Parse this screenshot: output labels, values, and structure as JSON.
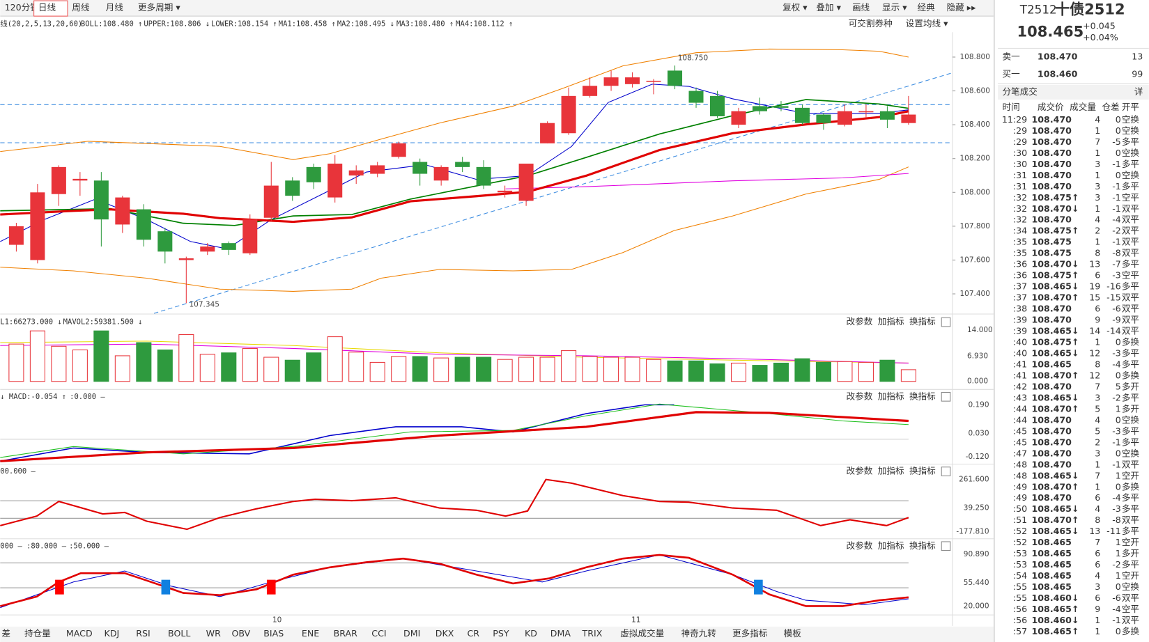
{
  "toolbar": {
    "periods": [
      "120分钟",
      "日线",
      "周线",
      "月线",
      "更多周期 ▾"
    ],
    "tools": [
      "复权 ▾",
      "叠加 ▾",
      "画线",
      "显示 ▾",
      "经典",
      "隐藏 ▸▸"
    ]
  },
  "main": {
    "legend": [
      "线(20,2,5,13,20,60)",
      "BOLL:108.480 ↑",
      "UPPER:108.806 ↓",
      "LOWER:108.154 ↑",
      "MA1:108.458 ↑",
      "MA2:108.495 ↓",
      "MA3:108.480 ↑",
      "MA4:108.112 ↑"
    ],
    "legend_colors": [
      "#333333",
      "#e00000",
      "#f08000",
      "#f08000",
      "#0000cc",
      "#008000",
      "#e00000",
      "#e000e0"
    ],
    "links": [
      "可交割券种",
      "设置均线 ▾"
    ],
    "ylim": [
      107.285,
      108.947
    ],
    "yticks": [
      {
        "value": 108.8,
        "label": "108.800"
      },
      {
        "value": 108.6,
        "label": "108.600"
      },
      {
        "value": 108.4,
        "label": "108.400"
      },
      {
        "value": 108.2,
        "label": "108.200"
      },
      {
        "value": 108.0,
        "label": "108.000"
      },
      {
        "value": 107.8,
        "label": "107.800"
      },
      {
        "value": 107.6,
        "label": "107.600"
      },
      {
        "value": 107.4,
        "label": "107.400"
      }
    ],
    "high_label": "108.750",
    "low_label": "107.345",
    "candles": {
      "open": [
        107.69,
        107.6,
        107.99,
        108.07,
        108.07,
        107.81,
        107.9,
        107.77,
        107.6,
        107.65,
        107.7,
        107.64,
        107.85,
        108.07,
        108.15,
        107.97,
        108.1,
        108.11,
        108.21,
        108.18,
        108.07,
        108.18,
        108.15,
        108.0,
        107.95,
        108.29,
        108.35,
        108.57,
        108.63,
        108.64,
        108.66,
        108.72,
        108.6,
        108.57,
        108.4,
        108.51,
        108.51,
        108.5,
        108.46,
        108.4,
        108.48,
        108.48,
        108.41
      ],
      "close": [
        107.8,
        108.0,
        108.15,
        108.08,
        107.84,
        107.97,
        107.72,
        107.65,
        107.61,
        107.68,
        107.66,
        107.84,
        108.04,
        107.98,
        108.06,
        108.17,
        108.13,
        108.16,
        108.29,
        108.11,
        108.15,
        108.15,
        108.04,
        108.01,
        108.17,
        108.41,
        108.57,
        108.63,
        108.68,
        108.68,
        108.66,
        108.63,
        108.53,
        108.45,
        108.48,
        108.48,
        108.5,
        108.41,
        108.41,
        108.48,
        108.48,
        108.43,
        108.46
      ],
      "high": [
        107.82,
        108.05,
        108.16,
        108.12,
        108.12,
        107.98,
        107.93,
        107.79,
        107.62,
        107.7,
        107.71,
        107.87,
        108.18,
        108.09,
        108.17,
        108.22,
        108.16,
        108.18,
        108.3,
        108.2,
        108.16,
        108.21,
        108.19,
        108.04,
        108.17,
        108.42,
        108.62,
        108.68,
        108.72,
        108.71,
        108.67,
        108.75,
        108.62,
        108.6,
        108.5,
        108.56,
        108.54,
        108.52,
        108.47,
        108.52,
        108.52,
        108.51,
        108.57
      ],
      "low": [
        107.65,
        107.58,
        107.92,
        107.98,
        107.68,
        107.76,
        107.68,
        107.58,
        107.345,
        107.63,
        107.63,
        107.63,
        107.83,
        107.95,
        108.02,
        107.94,
        108.05,
        108.09,
        108.2,
        108.04,
        108.04,
        108.12,
        108.02,
        107.97,
        107.92,
        108.29,
        108.34,
        108.56,
        108.6,
        108.62,
        108.58,
        108.61,
        108.5,
        108.44,
        108.38,
        108.46,
        108.48,
        108.4,
        108.37,
        108.39,
        108.44,
        108.38,
        108.4
      ]
    },
    "x_labels": [
      "10",
      "11"
    ]
  },
  "volume": {
    "legend": [
      "L1:66273.000 ↓",
      "MAVOL2:59381.500 ↓"
    ],
    "ylim": [
      0,
      14
    ],
    "yticks": [
      {
        "value": 14,
        "label": "14.000"
      },
      {
        "value": 6.93,
        "label": "6.930"
      },
      {
        "value": 0,
        "label": "0.000"
      }
    ],
    "values": [
      10.2,
      13.8,
      9.6,
      8.6,
      13.8,
      7.0,
      10.6,
      8.6,
      12.8,
      7.4,
      7.8,
      9.0,
      6.6,
      5.8,
      7.8,
      12.2,
      8.0,
      5.2,
      6.8,
      6.8,
      6.4,
      6.6,
      6.6,
      6.0,
      6.6,
      6.6,
      8.4,
      6.8,
      6.6,
      6.6,
      6.0,
      5.6,
      5.6,
      4.8,
      5.0,
      4.4,
      5.0,
      6.2,
      5.2,
      5.4,
      5.2,
      5.8,
      3.2
    ]
  },
  "macd": {
    "legend": [
      "↓ MACD:-0.054 ↑",
      ":0.000 –"
    ],
    "ticks": [
      "0.190",
      "0.030",
      "-0.120"
    ]
  },
  "cci": {
    "legend": [
      "00.000 –"
    ],
    "ticks": [
      "261.600",
      "39.250",
      "-177.810"
    ]
  },
  "kdj": {
    "legend": [
      "000 –",
      ":80.000 –",
      ":50.000 –"
    ],
    "ticks": [
      "90.890",
      "55.440",
      "20.000"
    ]
  },
  "panel_buttons": [
    "改参数",
    "加指标",
    "换指标"
  ],
  "tabs": [
    "差",
    "持仓量",
    "MACD",
    "KDJ",
    "RSI",
    "BOLL",
    "WR",
    "OBV",
    "BIAS",
    "ENE",
    "BRAR",
    "CCI",
    "DMI",
    "DKX",
    "CR",
    "PSY",
    "KD",
    "DMA",
    "TRIX",
    "虚拟成交量",
    "神奇九转",
    "更多指标",
    "模板"
  ],
  "quote": {
    "code": "T2512",
    "name": "十债2512",
    "price": "108.465",
    "change": "+0.045",
    "pct": "+0.04%",
    "book": [
      [
        "卖一",
        "108.470",
        "13"
      ],
      [
        "买一",
        "108.460",
        "99"
      ]
    ],
    "trades_title": "分笔成交",
    "detail": "详",
    "headers": [
      "时间",
      "成交价",
      "成交量",
      "仓差",
      "开平"
    ],
    "trades": [
      [
        "11:29",
        "108.470",
        "4",
        "0",
        "空换"
      ],
      [
        ":29",
        "108.470",
        "1",
        "0",
        "空换"
      ],
      [
        ":29",
        "108.470",
        "7",
        "-5",
        "多平"
      ],
      [
        ":30",
        "108.470",
        "1",
        "0",
        "空换"
      ],
      [
        ":30",
        "108.470",
        "3",
        "-1",
        "多平"
      ],
      [
        ":31",
        "108.470",
        "1",
        "0",
        "空换"
      ],
      [
        ":31",
        "108.470",
        "3",
        "-1",
        "多平"
      ],
      [
        ":32",
        "108.475↑",
        "3",
        "-1",
        "空平"
      ],
      [
        ":32",
        "108.470↓",
        "1",
        "-1",
        "双平"
      ],
      [
        ":32",
        "108.470",
        "4",
        "-4",
        "双平"
      ],
      [
        ":34",
        "108.475↑",
        "2",
        "-2",
        "双平"
      ],
      [
        ":35",
        "108.475",
        "1",
        "-1",
        "双平"
      ],
      [
        ":35",
        "108.475",
        "8",
        "-8",
        "双平"
      ],
      [
        ":36",
        "108.470↓",
        "13",
        "-7",
        "多平"
      ],
      [
        ":36",
        "108.475↑",
        "6",
        "-3",
        "空平"
      ],
      [
        ":37",
        "108.465↓",
        "19",
        "-16",
        "多平"
      ],
      [
        ":37",
        "108.470↑",
        "15",
        "-15",
        "双平"
      ],
      [
        ":38",
        "108.470",
        "6",
        "-6",
        "双平"
      ],
      [
        ":39",
        "108.470",
        "9",
        "-9",
        "双平"
      ],
      [
        ":39",
        "108.465↓",
        "14",
        "-14",
        "双平"
      ],
      [
        ":40",
        "108.475↑",
        "1",
        "0",
        "多换"
      ],
      [
        ":40",
        "108.465↓",
        "12",
        "-3",
        "多平"
      ],
      [
        ":41",
        "108.465",
        "8",
        "-4",
        "多平"
      ],
      [
        ":41",
        "108.470↑",
        "12",
        "0",
        "多换"
      ],
      [
        ":42",
        "108.470",
        "7",
        "5",
        "多开"
      ],
      [
        ":43",
        "108.465↓",
        "3",
        "-2",
        "多平"
      ],
      [
        ":44",
        "108.470↑",
        "5",
        "1",
        "多开"
      ],
      [
        ":44",
        "108.470",
        "4",
        "0",
        "空换"
      ],
      [
        ":45",
        "108.470",
        "5",
        "-3",
        "多平"
      ],
      [
        ":45",
        "108.470",
        "2",
        "-1",
        "多平"
      ],
      [
        ":47",
        "108.470",
        "3",
        "0",
        "空换"
      ],
      [
        ":48",
        "108.470",
        "1",
        "-1",
        "双平"
      ],
      [
        ":48",
        "108.465↓",
        "7",
        "1",
        "空开"
      ],
      [
        ":49",
        "108.470↑",
        "1",
        "0",
        "多换"
      ],
      [
        ":49",
        "108.470",
        "6",
        "-4",
        "多平"
      ],
      [
        ":50",
        "108.465↓",
        "4",
        "-3",
        "多平"
      ],
      [
        ":51",
        "108.470↑",
        "8",
        "-8",
        "双平"
      ],
      [
        ":52",
        "108.465↓",
        "13",
        "-11",
        "多平"
      ],
      [
        ":52",
        "108.465",
        "7",
        "1",
        "空开"
      ],
      [
        ":53",
        "108.465",
        "6",
        "1",
        "多开"
      ],
      [
        ":53",
        "108.465",
        "6",
        "-2",
        "多平"
      ],
      [
        ":54",
        "108.465",
        "4",
        "1",
        "空开"
      ],
      [
        ":55",
        "108.465",
        "3",
        "0",
        "空换"
      ],
      [
        ":55",
        "108.460↓",
        "6",
        "-6",
        "双平"
      ],
      [
        ":56",
        "108.465↑",
        "9",
        "-4",
        "空平"
      ],
      [
        ":56",
        "108.460↓",
        "1",
        "-1",
        "双平"
      ],
      [
        ":57",
        "108.465↑",
        "1",
        "0",
        "多换"
      ]
    ]
  }
}
